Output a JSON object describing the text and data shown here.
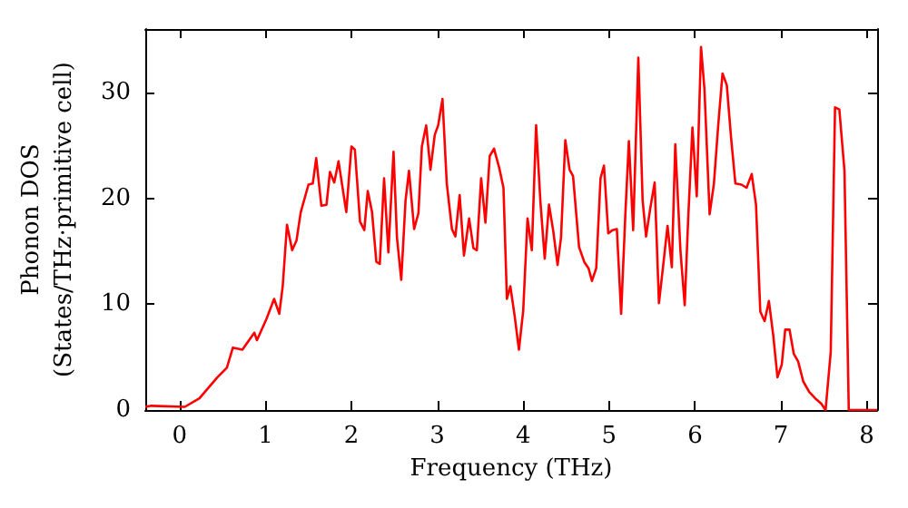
{
  "chart_data": {
    "type": "line",
    "xlabel": "Frequency (THz)",
    "ylabel": "Phonon DOS\n(States/THz·primitive cell)",
    "xlim": [
      -0.4,
      8.12
    ],
    "ylim": [
      0,
      36
    ],
    "xticks": [
      0,
      1,
      2,
      3,
      4,
      5,
      6,
      7,
      8
    ],
    "yticks": [
      0,
      10,
      20,
      30
    ],
    "grid": false,
    "marker": "none",
    "line_style": "solid",
    "series": [
      {
        "color": "#ff0000",
        "x": [
          -0.4,
          -0.33,
          0.06,
          0.23,
          0.44,
          0.55,
          0.62,
          0.73,
          0.87,
          0.9,
          1.01,
          1.1,
          1.16,
          1.2,
          1.25,
          1.31,
          1.36,
          1.41,
          1.5,
          1.55,
          1.59,
          1.65,
          1.71,
          1.75,
          1.8,
          1.85,
          1.94,
          2.0,
          2.04,
          2.1,
          2.15,
          2.19,
          2.24,
          2.29,
          2.33,
          2.38,
          2.43,
          2.49,
          2.53,
          2.58,
          2.63,
          2.67,
          2.73,
          2.78,
          2.82,
          2.87,
          2.92,
          2.97,
          3.01,
          3.06,
          3.11,
          3.17,
          3.21,
          3.26,
          3.31,
          3.37,
          3.42,
          3.46,
          3.51,
          3.56,
          3.61,
          3.66,
          3.72,
          3.77,
          3.81,
          3.85,
          3.9,
          3.95,
          4.0,
          4.05,
          4.1,
          4.15,
          4.2,
          4.25,
          4.3,
          4.35,
          4.4,
          4.44,
          4.49,
          4.54,
          4.58,
          4.65,
          4.71,
          4.76,
          4.8,
          4.85,
          4.9,
          4.94,
          4.99,
          5.04,
          5.09,
          5.14,
          5.19,
          5.23,
          5.28,
          5.34,
          5.39,
          5.43,
          5.48,
          5.53,
          5.58,
          5.63,
          5.68,
          5.73,
          5.77,
          5.83,
          5.88,
          5.92,
          5.97,
          6.02,
          6.07,
          6.11,
          6.17,
          6.22,
          6.27,
          6.32,
          6.37,
          6.42,
          6.47,
          6.54,
          6.6,
          6.66,
          6.71,
          6.76,
          6.81,
          6.86,
          6.91,
          6.96,
          7.01,
          7.05,
          7.1,
          7.15,
          7.2,
          7.26,
          7.33,
          7.4,
          7.47,
          7.52,
          7.58,
          7.63,
          7.68,
          7.74,
          7.79,
          8.12
        ],
        "values": [
          0.3,
          0.4,
          0.3,
          1.1,
          3.1,
          4,
          5.9,
          5.7,
          7.3,
          6.6,
          8.6,
          10.5,
          9.1,
          11.7,
          17.5,
          15.1,
          16,
          18.7,
          21.3,
          21.4,
          23.8,
          19.3,
          19.4,
          22.5,
          21.5,
          23.5,
          18.7,
          24.9,
          24.6,
          17.8,
          17,
          20.7,
          18.7,
          14,
          13.8,
          21.9,
          14.9,
          24.4,
          16.3,
          12.3,
          19.8,
          22.6,
          17.1,
          18.6,
          24.9,
          26.9,
          22.7,
          26,
          26.9,
          29.4,
          21.4,
          17.1,
          16.4,
          20.3,
          14.6,
          18.1,
          15.3,
          15.1,
          21.9,
          17.7,
          24,
          24.7,
          22.9,
          21,
          10.5,
          11.7,
          8.9,
          5.7,
          9.4,
          18.1,
          15.1,
          26.9,
          19.7,
          14.3,
          19.4,
          16.9,
          13.7,
          16.3,
          25.5,
          22.7,
          22.1,
          15.4,
          14,
          13.4,
          12.2,
          13.4,
          21.9,
          23.1,
          16.7,
          17,
          17.1,
          9.1,
          18.7,
          25.4,
          17,
          33.3,
          19.8,
          16.4,
          19.1,
          21.5,
          10.1,
          13.7,
          17.4,
          13.5,
          25.1,
          15.1,
          9.9,
          18,
          26.7,
          20.2,
          34.3,
          30.3,
          18.5,
          21.4,
          26.9,
          31.8,
          30.7,
          25.7,
          21.4,
          21.3,
          21,
          22.3,
          19.4,
          9.3,
          8.4,
          10.3,
          7.1,
          3.1,
          4.3,
          7.6,
          7.6,
          5.3,
          4.6,
          2.7,
          1.7,
          1.1,
          0.6,
          0,
          5.5,
          28.6,
          28.4,
          22.6,
          0,
          0
        ]
      }
    ]
  }
}
